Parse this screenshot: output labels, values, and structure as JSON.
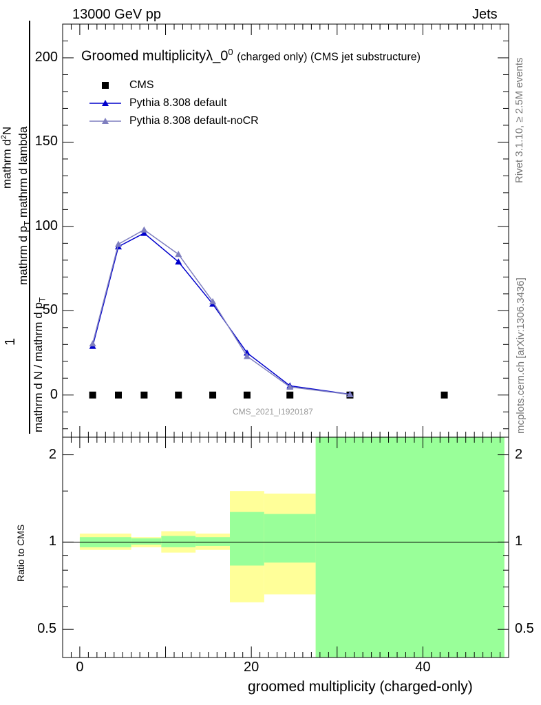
{
  "header": {
    "left": "13000 GeV pp",
    "right": "Jets"
  },
  "plot_title": {
    "main": "Groomed multiplicityλ_0",
    "superscript": "0",
    "tail": "(charged only) (CMS jet substructure)"
  },
  "side_text": {
    "rivet": "Rivet 3.1.10, ≥ 2.5M events",
    "mcplots": "mcplots.cern.ch [arXiv:1306.3436]"
  },
  "analysis_id": "CMS_2021_I1920187",
  "y_label": {
    "numerator_1": "1",
    "denominator_1": "mathrm d N / mathrm d p",
    "denominator_sub": "T",
    "numerator_2": "mathrm d",
    "numerator_2_sup": "2",
    "numerator_2_tail": "N",
    "denominator_2a": "mathrm d p",
    "denominator_2_sub": "T",
    "denominator_2b": "mathrm d lambda"
  },
  "ratio_label": "Ratio to CMS",
  "x_label": "groomed multiplicity (charged-only)",
  "colors": {
    "default": "#0000cc",
    "nocr": "#7f7fbf",
    "data": "#000000",
    "band_outer": "#ffff99",
    "band_inner": "#99ff99"
  },
  "chart_data": [
    {
      "type": "line",
      "xlim": [
        -2,
        50
      ],
      "ylim": [
        -25,
        220
      ],
      "yticks": [
        0,
        50,
        100,
        150,
        200
      ],
      "legend": [
        "CMS",
        "Pythia 8.308 default",
        "Pythia 8.308 default-noCR"
      ],
      "legend_position": "top-left",
      "series": [
        {
          "name": "CMS",
          "marker": "square",
          "x": [
            1.5,
            4.5,
            7.5,
            11.5,
            15.5,
            19.5,
            24.5,
            31.5,
            42.5
          ],
          "y": [
            0,
            0,
            0,
            0,
            0,
            0,
            0,
            0,
            0
          ]
        },
        {
          "name": "Pythia 8.308 default",
          "marker": "triangle",
          "x": [
            1.5,
            4.5,
            7.5,
            11.5,
            15.5,
            19.5,
            24.5,
            31.5
          ],
          "y": [
            29,
            88,
            96,
            79,
            54,
            25,
            5.5,
            0.4
          ]
        },
        {
          "name": "Pythia 8.308 default-noCR",
          "marker": "triangle",
          "x": [
            1.5,
            4.5,
            7.5,
            11.5,
            15.5,
            19.5,
            24.5,
            31.5
          ],
          "y": [
            30.5,
            89.5,
            98,
            83.5,
            55.5,
            23,
            4.8,
            0.3
          ]
        }
      ]
    },
    {
      "type": "area",
      "title": "Ratio to CMS",
      "xlim": [
        -2,
        50
      ],
      "ylim": [
        0.4,
        2.3
      ],
      "ylog": true,
      "yticks": [
        0.5,
        1,
        2
      ],
      "xticks": [
        0,
        20,
        40
      ],
      "bins": [
        {
          "lo": 0,
          "hi": 6,
          "outer": [
            0.94,
            1.07
          ],
          "inner": [
            0.96,
            1.04
          ]
        },
        {
          "lo": 6,
          "hi": 9.5,
          "outer": [
            0.96,
            1.04
          ],
          "inner": [
            0.98,
            1.03
          ]
        },
        {
          "lo": 9.5,
          "hi": 13.5,
          "outer": [
            0.92,
            1.09
          ],
          "inner": [
            0.96,
            1.05
          ]
        },
        {
          "lo": 13.5,
          "hi": 17.5,
          "outer": [
            0.94,
            1.07
          ],
          "inner": [
            0.97,
            1.04
          ]
        },
        {
          "lo": 17.5,
          "hi": 21.5,
          "outer": [
            0.62,
            1.5
          ],
          "inner": [
            0.83,
            1.27
          ]
        },
        {
          "lo": 21.5,
          "hi": 27.5,
          "outer": [
            0.66,
            1.47
          ],
          "inner": [
            0.85,
            1.25
          ]
        },
        {
          "lo": 27.5,
          "hi": 49.5,
          "outer": [
            0.4,
            2.3
          ],
          "inner": [
            0.4,
            2.3
          ]
        }
      ],
      "reference_line": 1
    }
  ]
}
